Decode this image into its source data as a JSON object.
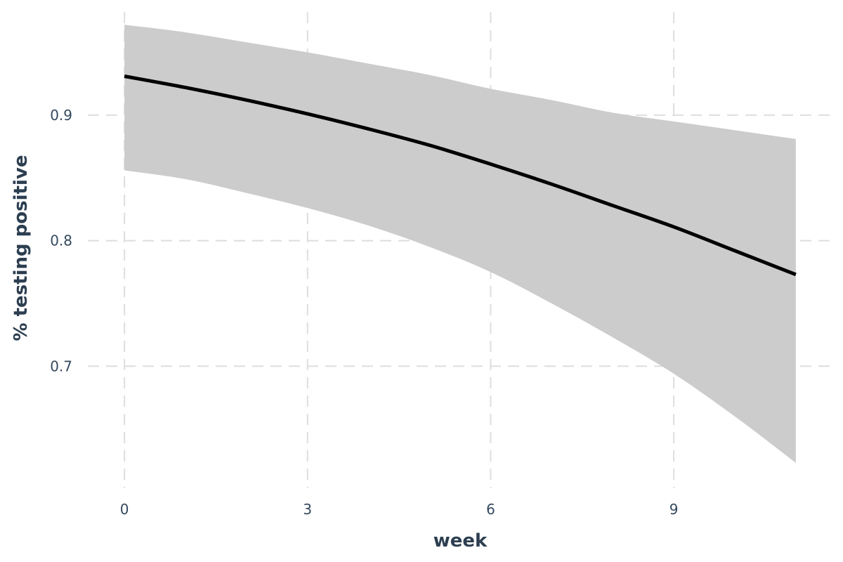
{
  "chart_data": {
    "type": "line",
    "title": "",
    "xlabel": "week",
    "ylabel": "% testing positive",
    "xlim": [
      -0.6,
      11.6
    ],
    "ylim": [
      0.6,
      0.985
    ],
    "x_ticks": [
      0,
      3,
      6,
      9
    ],
    "y_ticks": [
      0.7,
      0.8,
      0.9
    ],
    "x_tick_labels": [
      "0",
      "3",
      "6",
      "9"
    ],
    "y_tick_labels": [
      "0.7",
      "0.8",
      "0.9"
    ],
    "grid": true,
    "legend": "none",
    "colors": {
      "line": "#000000",
      "band": "#cccccc",
      "grid": "#dedede",
      "text": "#34495e"
    },
    "series": [
      {
        "x": [
          0,
          1,
          2,
          3,
          4,
          5,
          6,
          7,
          8,
          9,
          10,
          11
        ],
        "y": [
          0.931,
          0.922,
          0.912,
          0.901,
          0.889,
          0.876,
          0.861,
          0.845,
          0.828,
          0.811,
          0.792,
          0.773
        ],
        "lower": [
          0.856,
          0.849,
          0.838,
          0.826,
          0.812,
          0.795,
          0.775,
          0.75,
          0.723,
          0.694,
          0.66,
          0.623
        ],
        "upper": [
          0.972,
          0.966,
          0.958,
          0.95,
          0.941,
          0.932,
          0.921,
          0.912,
          0.902,
          0.895,
          0.888,
          0.881
        ]
      }
    ]
  }
}
